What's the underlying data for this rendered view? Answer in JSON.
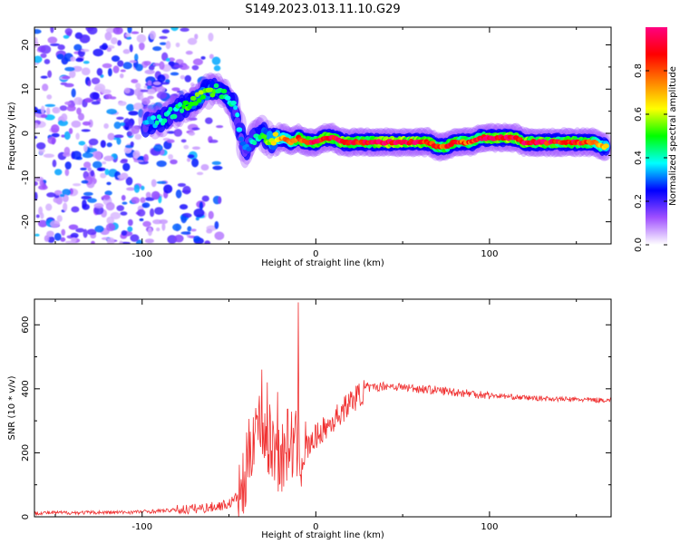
{
  "figure_title": "S149.2023.013.11.10.G29",
  "chart_data": [
    {
      "type": "heatmap",
      "title": "",
      "xlabel": "Height of straight line (km)",
      "ylabel": "Frequency (Hz)",
      "xlim": [
        -162,
        170
      ],
      "ylim": [
        -25,
        24
      ],
      "xticks": [
        -100,
        0,
        100
      ],
      "xtick_labels": [
        "-100",
        "0",
        "100"
      ],
      "yticks": [
        -20,
        -10,
        0,
        10,
        20
      ],
      "ytick_labels": [
        "-20",
        "-10",
        "0",
        "10",
        "20"
      ],
      "grid": false,
      "ridge": {
        "x": [
          -98,
          -90,
          -80,
          -72,
          -65,
          -58,
          -52,
          -47,
          -44,
          -41,
          -38,
          -35,
          -31,
          -28,
          -25,
          -22,
          -18,
          -14,
          -10,
          -6,
          0,
          5,
          10,
          15,
          20,
          25,
          30,
          40,
          50,
          60,
          65,
          70,
          75,
          80,
          85,
          90,
          95,
          100,
          110,
          115,
          120,
          130,
          140,
          150,
          160,
          165,
          168
        ],
        "y": [
          2,
          3,
          5,
          7,
          9,
          10,
          9,
          6,
          1,
          -4,
          -2,
          -1,
          0,
          -1,
          -2,
          -1,
          -1,
          -2,
          -1,
          -2,
          -2,
          -1,
          -1,
          -2,
          -2,
          -2,
          -2,
          -2,
          -2,
          -2,
          -2,
          -3,
          -3,
          -2,
          -2,
          -2,
          -1,
          -1,
          -1,
          -1,
          -2,
          -2,
          -2,
          -2,
          -2,
          -3,
          -3
        ],
        "amplitude": [
          0.35,
          0.4,
          0.45,
          0.5,
          0.55,
          0.5,
          0.45,
          0.4,
          0.35,
          0.3,
          0.35,
          0.4,
          0.5,
          0.55,
          0.6,
          0.65,
          0.75,
          0.8,
          0.85,
          0.9,
          0.9,
          0.9,
          0.95,
          0.95,
          0.9,
          0.85,
          0.9,
          1.0,
          1.0,
          0.95,
          0.9,
          0.85,
          0.85,
          0.9,
          0.85,
          0.85,
          0.9,
          0.95,
          1.0,
          0.95,
          0.95,
          0.95,
          0.9,
          0.9,
          0.85,
          0.7,
          0.6
        ]
      },
      "colorbar": {
        "label": "Normalized spectral amplitude",
        "range": [
          0,
          1
        ],
        "ticks": [
          0.0,
          0.2,
          0.4,
          0.6,
          0.8
        ],
        "tick_labels": [
          "0.0",
          "0.2",
          "0.4",
          "0.6",
          "0.8"
        ],
        "colors": [
          "#ffffff",
          "#a050ff",
          "#0000ff",
          "#00ffff",
          "#00ff00",
          "#ffff00",
          "#ff8000",
          "#ff0000",
          "#ff0080"
        ]
      }
    },
    {
      "type": "line",
      "title": "",
      "xlabel": "Height of straight line (km)",
      "ylabel": "SNR (10 * v/v)",
      "xlim": [
        -162,
        170
      ],
      "ylim": [
        0,
        680
      ],
      "xticks": [
        -100,
        0,
        100
      ],
      "xtick_labels": [
        "-100",
        "0",
        "100"
      ],
      "yticks": [
        0,
        200,
        400,
        600
      ],
      "ytick_labels": [
        "0",
        "200",
        "400",
        "600"
      ],
      "grid": false,
      "color": "#f03030",
      "series_key_points": {
        "x": [
          -162,
          -110,
          -90,
          -70,
          -60,
          -50,
          -42,
          -38,
          -35,
          -30,
          -25,
          -20,
          -15,
          -10,
          -5,
          0,
          10,
          20,
          25,
          30,
          40,
          50,
          60,
          80,
          100,
          120,
          140,
          160,
          170
        ],
        "y": [
          12,
          14,
          18,
          25,
          30,
          40,
          80,
          200,
          300,
          260,
          220,
          180,
          240,
          200,
          210,
          250,
          300,
          360,
          380,
          400,
          410,
          405,
          400,
          390,
          380,
          372,
          368,
          365,
          365
        ]
      },
      "spikes": [
        {
          "x": -31,
          "y": 460
        },
        {
          "x": -28,
          "y": 420
        },
        {
          "x": -22,
          "y": 390
        },
        {
          "x": -10,
          "y": 670
        }
      ]
    }
  ]
}
